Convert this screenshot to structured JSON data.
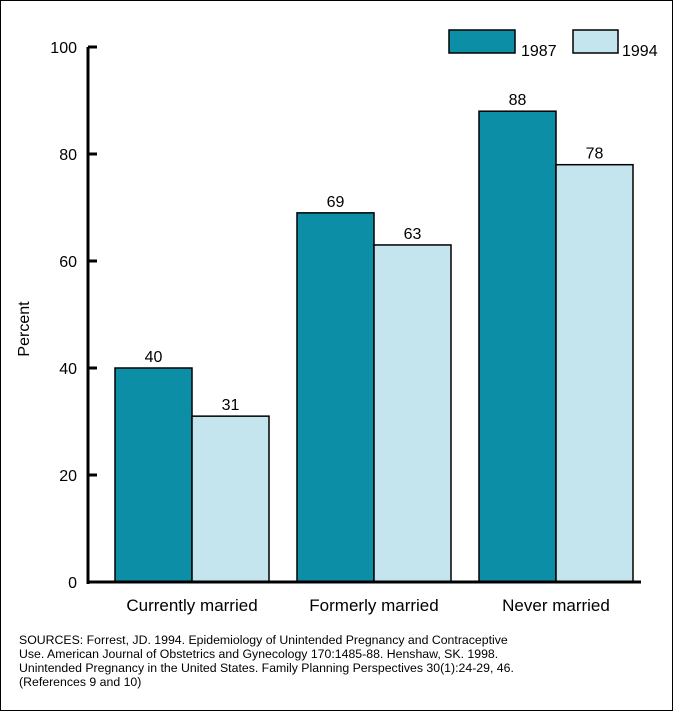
{
  "chart_data": {
    "type": "bar",
    "title": "",
    "xlabel": "",
    "ylabel": "Percent",
    "ylim": [
      0,
      100
    ],
    "yticks": [
      0,
      20,
      40,
      60,
      80,
      100
    ],
    "categories": [
      "Currently married",
      "Formerly married",
      "Never married"
    ],
    "series": [
      {
        "name": "1987",
        "color": "#0b8ea6",
        "values": [
          40,
          69,
          88
        ]
      },
      {
        "name": "1994",
        "color": "#c4e4ee",
        "values": [
          31,
          63,
          78
        ]
      }
    ],
    "legend_position": "top-right",
    "grid": false
  },
  "sources": {
    "lines": [
      "SOURCES: Forrest, JD. 1994. Epidemiology of Unintended Pregnancy and Contraceptive",
      "Use. American Journal of Obstetrics and Gynecology 170:1485-88. Henshaw, SK. 1998.",
      "Unintended Pregnancy in the United States.  Family Planning Perspectives 30(1):24-29, 46.",
      "(References 9 and 10)"
    ]
  }
}
